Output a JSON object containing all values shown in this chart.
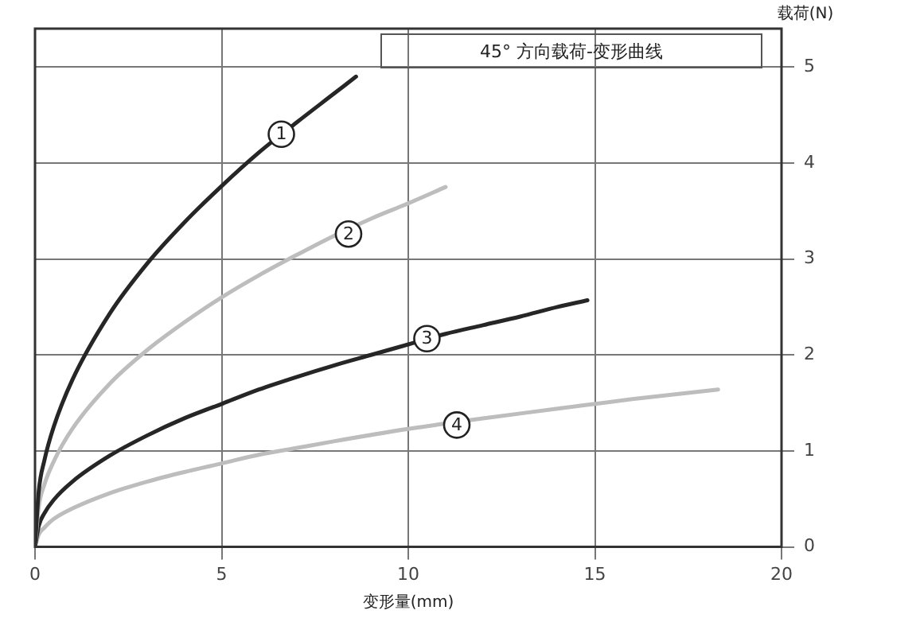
{
  "chart_data": {
    "type": "line",
    "title": "45° 方向载荷-变形曲线",
    "xlabel": "变形量(mm)",
    "ylabel": "载荷(N)",
    "xlim": [
      0,
      20
    ],
    "xticks": [
      0,
      5,
      10,
      15,
      20
    ],
    "ylim": [
      0,
      5.4
    ],
    "yticks": [
      0,
      1,
      2,
      3,
      4,
      5
    ],
    "grid": true,
    "legend": false,
    "marker": "none",
    "line_style": "solid",
    "series": [
      {
        "color": "#262626",
        "x": [
          0,
          0.1,
          0.25,
          0.5,
          1,
          2,
          3,
          4,
          5,
          6,
          7,
          8,
          8.6
        ],
        "values": [
          0,
          0.58,
          0.9,
          1.25,
          1.74,
          2.43,
          2.95,
          3.38,
          3.76,
          4.11,
          4.42,
          4.72,
          4.9
        ]
      },
      {
        "color": "#bdbdbd",
        "x": [
          0,
          0.1,
          0.25,
          0.5,
          1,
          2,
          3,
          4,
          5,
          6,
          7,
          8,
          9,
          10,
          11
        ],
        "values": [
          0,
          0.42,
          0.65,
          0.89,
          1.23,
          1.7,
          2.05,
          2.34,
          2.6,
          2.83,
          3.04,
          3.24,
          3.42,
          3.58,
          3.75
        ]
      },
      {
        "color": "#262626",
        "x": [
          0,
          0.1,
          0.25,
          0.5,
          1,
          2,
          3,
          4,
          5,
          6,
          7,
          8,
          9,
          10,
          11,
          12,
          13,
          14,
          14.8
        ],
        "values": [
          0,
          0.22,
          0.35,
          0.49,
          0.68,
          0.95,
          1.16,
          1.34,
          1.49,
          1.64,
          1.77,
          1.89,
          2.0,
          2.11,
          2.22,
          2.31,
          2.4,
          2.5,
          2.57
        ]
      },
      {
        "color": "#bdbdbd",
        "x": [
          0,
          0.1,
          0.25,
          0.5,
          1,
          2,
          3,
          4,
          5,
          6,
          7,
          8,
          10,
          12,
          14,
          16,
          18.3
        ],
        "values": [
          0,
          0.13,
          0.2,
          0.29,
          0.4,
          0.56,
          0.68,
          0.78,
          0.87,
          0.96,
          1.03,
          1.1,
          1.23,
          1.34,
          1.44,
          1.54,
          1.64
        ]
      }
    ],
    "annotations": [
      {
        "text": "1",
        "x": 6.6,
        "y": 4.3
      },
      {
        "text": "2",
        "x": 8.4,
        "y": 3.26
      },
      {
        "text": "3",
        "x": 10.5,
        "y": 2.17
      },
      {
        "text": "4",
        "x": 11.3,
        "y": 1.27
      }
    ]
  }
}
